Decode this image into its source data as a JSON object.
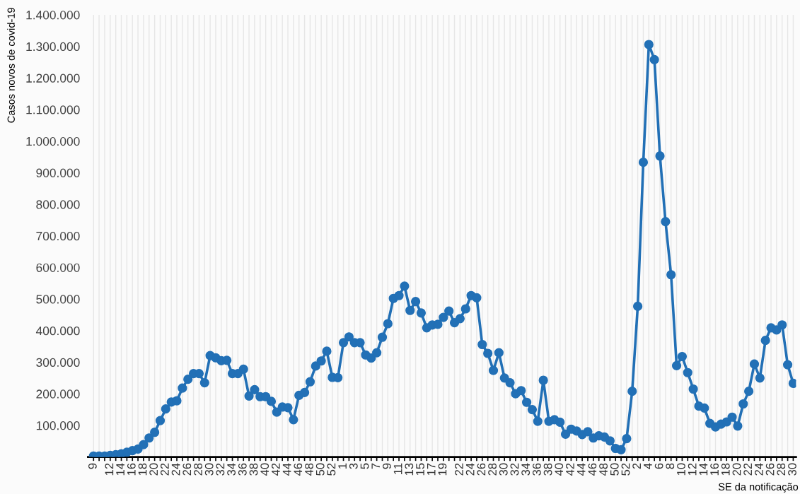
{
  "chart_data": {
    "type": "line",
    "xlabel": "SE da notificação",
    "ylabel": "Casos novos de covid-19",
    "categories": [
      "9",
      null,
      null,
      "12",
      null,
      "14",
      null,
      "16",
      null,
      "18",
      null,
      "20",
      null,
      "22",
      null,
      "24",
      null,
      "26",
      null,
      "28",
      null,
      "30",
      null,
      "32",
      null,
      "34",
      null,
      "36",
      null,
      "38",
      null,
      "40",
      null,
      "42",
      null,
      "44",
      null,
      "46",
      null,
      "48",
      null,
      "50",
      null,
      "52",
      null,
      "1",
      null,
      "3",
      null,
      "5",
      null,
      "7",
      null,
      "9",
      null,
      "11",
      null,
      "13",
      null,
      "15",
      null,
      "17",
      null,
      "19",
      null,
      null,
      "22",
      null,
      "24",
      null,
      "26",
      null,
      "28",
      null,
      "30",
      null,
      "32",
      null,
      "34",
      null,
      "36",
      null,
      "38",
      null,
      "40",
      null,
      "42",
      null,
      "44",
      null,
      "46",
      null,
      "48",
      null,
      "50",
      null,
      "52",
      null,
      "2",
      null,
      "4",
      null,
      "6",
      null,
      "8",
      null,
      "10",
      null,
      "12",
      null,
      "14",
      null,
      "16",
      null,
      "18",
      null,
      "20",
      null,
      "22",
      null,
      "24",
      null,
      "26",
      null,
      "28",
      null,
      "30"
    ],
    "series": [
      {
        "color": "#2270b6",
        "values": [
          3000,
          3000,
          3000,
          5000,
          7000,
          10000,
          15000,
          20000,
          25000,
          39000,
          60000,
          78000,
          115000,
          152000,
          174000,
          178000,
          218000,
          246000,
          264000,
          264000,
          235000,
          321000,
          314000,
          305000,
          306000,
          264000,
          264000,
          278000,
          193000,
          213000,
          191000,
          191000,
          176000,
          142000,
          158000,
          156000,
          118000,
          195000,
          204000,
          238000,
          288000,
          304000,
          335000,
          252000,
          251000,
          362000,
          380000,
          362000,
          362000,
          323000,
          313000,
          330000,
          379000,
          422000,
          502000,
          511000,
          541000,
          464000,
          492000,
          456000,
          409000,
          418000,
          420000,
          442000,
          462000,
          425000,
          438000,
          469000,
          511000,
          504000,
          356000,
          328000,
          274000,
          330000,
          250000,
          235000,
          200000,
          210000,
          173000,
          150000,
          113000,
          243000,
          113000,
          118000,
          110000,
          72000,
          88000,
          82000,
          71000,
          80000,
          60000,
          67000,
          63000,
          51000,
          27000,
          23000,
          58000,
          208000,
          477000,
          933000,
          1306000,
          1258000,
          953000,
          745000,
          577000,
          289000,
          318000,
          267000,
          215000,
          161000,
          155000,
          106000,
          95000,
          104000,
          111000,
          126000,
          98000,
          168000,
          208000,
          294000,
          250000,
          369000,
          409000,
          402000,
          418000,
          292000,
          233000
        ]
      }
    ],
    "ylim": [
      0,
      1400000
    ],
    "yticks": [
      {
        "value": 100000,
        "label": "100.000"
      },
      {
        "value": 200000,
        "label": "200.000"
      },
      {
        "value": 300000,
        "label": "300.000"
      },
      {
        "value": 400000,
        "label": "400.000"
      },
      {
        "value": 500000,
        "label": "500.000"
      },
      {
        "value": 600000,
        "label": "600.000"
      },
      {
        "value": 700000,
        "label": "700.000"
      },
      {
        "value": 800000,
        "label": "800.000"
      },
      {
        "value": 900000,
        "label": "900.000"
      },
      {
        "value": 1000000,
        "label": "1.000.000"
      },
      {
        "value": 1100000,
        "label": "1.100.000"
      },
      {
        "value": 1200000,
        "label": "1.200.000"
      },
      {
        "value": 1300000,
        "label": "1.300.000"
      },
      {
        "value": 1400000,
        "label": "1.400.000"
      }
    ],
    "grid": "x",
    "marker": "circle",
    "line_style": "solid"
  }
}
